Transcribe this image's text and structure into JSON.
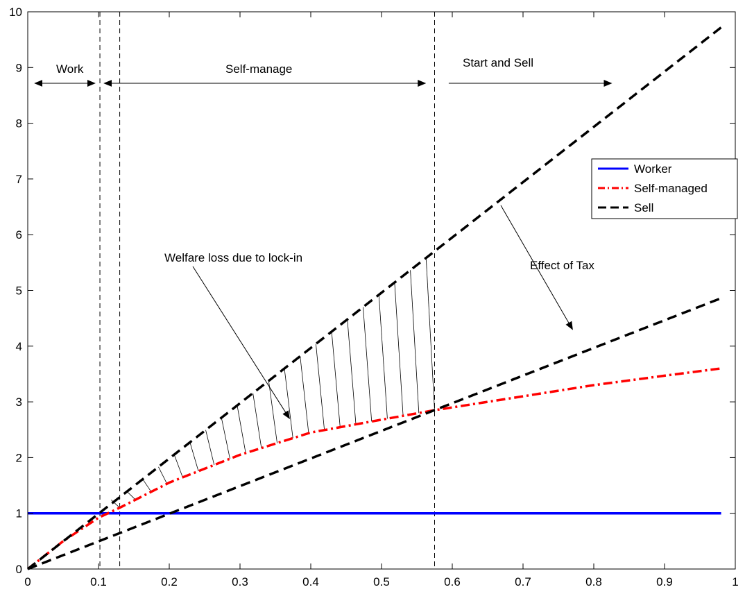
{
  "chart_data": {
    "type": "line",
    "title": "",
    "xlabel": "",
    "ylabel": "",
    "xlim": [
      0,
      1
    ],
    "ylim": [
      0,
      10
    ],
    "grid": false,
    "legend_position": "right",
    "x_ticks": [
      "0",
      "0.1",
      "0.2",
      "0.3",
      "0.4",
      "0.5",
      "0.6",
      "0.7",
      "0.8",
      "0.9",
      "1"
    ],
    "y_ticks": [
      "0",
      "1",
      "2",
      "3",
      "4",
      "5",
      "6",
      "7",
      "8",
      "9",
      "10"
    ],
    "series": [
      {
        "name": "Worker",
        "color": "#0000ff",
        "style": "solid",
        "x": [
          0.0,
          0.98
        ],
        "y": [
          1.0,
          1.0
        ]
      },
      {
        "name": "Self-managed",
        "color": "#ff0000",
        "style": "dash-dot",
        "x": [
          0.0,
          0.05,
          0.1,
          0.13,
          0.2,
          0.3,
          0.4,
          0.5,
          0.575,
          0.7,
          0.8,
          0.9,
          0.98
        ],
        "y": [
          0.0,
          0.5,
          0.92,
          1.1,
          1.55,
          2.05,
          2.45,
          2.68,
          2.85,
          3.1,
          3.3,
          3.47,
          3.6
        ]
      },
      {
        "name": "Sell",
        "color": "#000000",
        "style": "dashed",
        "x": [
          0.0,
          0.98
        ],
        "y": [
          0.0,
          9.72
        ]
      },
      {
        "name": "",
        "color": "#000000",
        "style": "dashed",
        "x": [
          0.0,
          0.98
        ],
        "y": [
          0.0,
          4.86
        ]
      }
    ],
    "vertical_lines": [
      0.102,
      0.13,
      0.575
    ],
    "hatched_region": {
      "x_start": 0.13,
      "x_end": 0.575
    },
    "regions": [
      {
        "label": "Work",
        "x_from": 0.01,
        "x_to": 0.095
      },
      {
        "label": "Self-manage",
        "x_from": 0.108,
        "x_to": 0.562
      },
      {
        "label": "Start and Sell",
        "x_from": 0.595,
        "x_to": 0.825
      }
    ],
    "annotations": [
      {
        "text": "Welfare loss due to lock-in",
        "arrow_to": [
          0.37,
          2.7
        ]
      },
      {
        "text": "Effect of Tax",
        "arrow_to": [
          0.77,
          4.3
        ]
      }
    ]
  }
}
